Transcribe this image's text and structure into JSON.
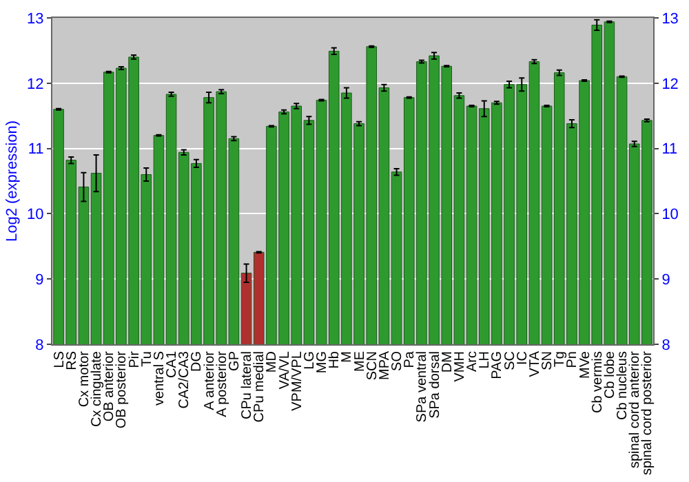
{
  "chart_data": {
    "type": "bar",
    "ylabel": "Log2 (expression)",
    "categories": [
      "LS",
      "RS",
      "Cx motor",
      "Cx cingulate",
      "OB anterior",
      "OB posterior",
      "Pir",
      "Tu",
      "ventral S",
      "CA1",
      "CA2/CA3",
      "DG",
      "A anterior",
      "A posterior",
      "GP",
      "CPu lateral",
      "CPu medial",
      "MD",
      "VA/VL",
      "VPM/VPL",
      "LG",
      "MG",
      "Hb",
      "M",
      "ME",
      "SCN",
      "MPA",
      "SO",
      "Pa",
      "SPa ventral",
      "SPa dorsal",
      "DM",
      "VMH",
      "Arc",
      "LH",
      "PAG",
      "SC",
      "IC",
      "VTA",
      "SN",
      "Tg",
      "Pn",
      "MVe",
      "Cb vermis",
      "Cb lobe",
      "Cb nucleus",
      "spinal cord anterior",
      "spinal cord posterior"
    ],
    "values": [
      11.6,
      10.82,
      10.41,
      10.62,
      12.17,
      12.23,
      12.4,
      10.6,
      11.2,
      11.83,
      10.94,
      10.77,
      11.78,
      11.87,
      11.15,
      9.09,
      9.41,
      11.34,
      11.56,
      11.65,
      11.43,
      11.74,
      12.49,
      11.85,
      11.38,
      12.56,
      11.93,
      10.64,
      11.78,
      12.33,
      12.42,
      12.26,
      11.81,
      11.65,
      11.61,
      11.7,
      11.98,
      11.98,
      12.33,
      11.65,
      12.16,
      11.38,
      12.04,
      12.89,
      12.94,
      12.1,
      11.07,
      11.43
    ],
    "errors": [
      0.01,
      0.05,
      0.22,
      0.28,
      0.01,
      0.02,
      0.03,
      0.1,
      0.01,
      0.03,
      0.04,
      0.06,
      0.08,
      0.03,
      0.03,
      0.14,
      0.01,
      0.01,
      0.03,
      0.04,
      0.06,
      0.01,
      0.05,
      0.08,
      0.03,
      0.01,
      0.05,
      0.05,
      0.01,
      0.02,
      0.05,
      0.01,
      0.04,
      0.01,
      0.12,
      0.02,
      0.05,
      0.1,
      0.03,
      0.01,
      0.04,
      0.06,
      0.01,
      0.08,
      0.01,
      0.01,
      0.04,
      0.02
    ],
    "colors": [
      "#2e9a2e",
      "#2e9a2e",
      "#2e9a2e",
      "#2e9a2e",
      "#2e9a2e",
      "#2e9a2e",
      "#2e9a2e",
      "#2e9a2e",
      "#2e9a2e",
      "#2e9a2e",
      "#2e9a2e",
      "#2e9a2e",
      "#2e9a2e",
      "#2e9a2e",
      "#2e9a2e",
      "#b03030",
      "#b03030",
      "#2e9a2e",
      "#2e9a2e",
      "#2e9a2e",
      "#2e9a2e",
      "#2e9a2e",
      "#2e9a2e",
      "#2e9a2e",
      "#2e9a2e",
      "#2e9a2e",
      "#2e9a2e",
      "#2e9a2e",
      "#2e9a2e",
      "#2e9a2e",
      "#2e9a2e",
      "#2e9a2e",
      "#2e9a2e",
      "#2e9a2e",
      "#2e9a2e",
      "#2e9a2e",
      "#2e9a2e",
      "#2e9a2e",
      "#2e9a2e",
      "#2e9a2e",
      "#2e9a2e",
      "#2e9a2e",
      "#2e9a2e",
      "#2e9a2e",
      "#2e9a2e",
      "#2e9a2e",
      "#2e9a2e",
      "#2e9a2e"
    ],
    "ylim": [
      8,
      13
    ],
    "yticks": [
      8,
      9,
      10,
      11,
      12,
      13
    ],
    "y2lim": [
      8,
      13
    ],
    "y2ticks": [
      8,
      9,
      10,
      11,
      12,
      13
    ],
    "grid": "y"
  }
}
